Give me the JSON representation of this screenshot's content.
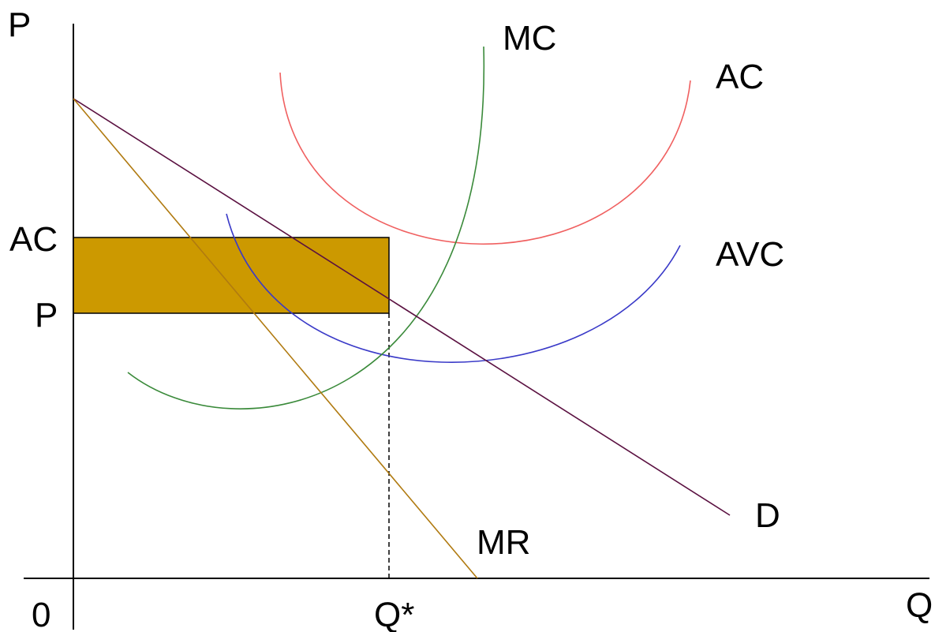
{
  "labels": {
    "y_axis": "P",
    "x_axis": "Q",
    "origin": "0",
    "quantity": "Q*",
    "price_ac": "AC",
    "price_p": "P"
  },
  "curves": {
    "mc": {
      "label": "MC",
      "color": "#3a8a3a"
    },
    "ac": {
      "label": "AC",
      "color": "#f06060"
    },
    "avc": {
      "label": "AVC",
      "color": "#3a3ac8"
    },
    "d": {
      "label": "D",
      "color": "#5a1040"
    },
    "mr": {
      "label": "MR",
      "color": "#b07a10"
    }
  },
  "loss_rectangle": {
    "color": "#cc9900"
  }
}
